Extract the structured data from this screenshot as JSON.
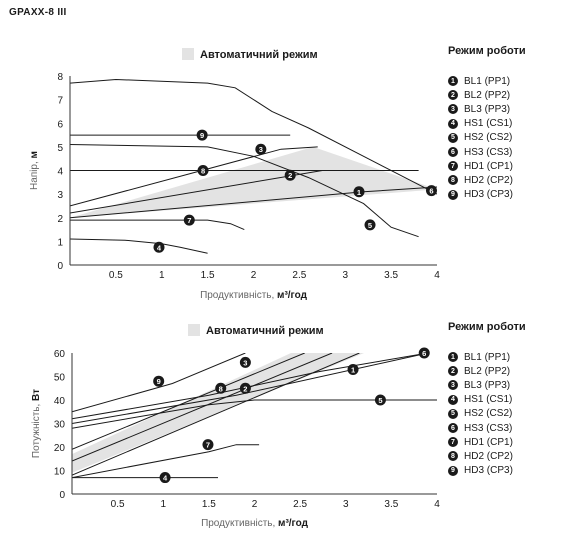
{
  "document_title": "GPAXX-8 III",
  "chart_data": [
    {
      "type": "line",
      "title": "Автоматичний режим",
      "xlabel": "Продуктивність, м³/год",
      "ylabel": "Напір, м",
      "xlim": [
        0,
        4
      ],
      "ylim": [
        0,
        8
      ],
      "x_ticks": [
        "0.5",
        "1",
        "1.5",
        "2",
        "2.5",
        "3",
        "3.5",
        "4"
      ],
      "y_ticks": [
        "0",
        "1",
        "2",
        "3",
        "4",
        "5",
        "6",
        "7",
        "8"
      ],
      "series": [
        {
          "marker": "1",
          "points": [
            [
              0,
              2.0
            ],
            [
              3.2,
              3.1
            ],
            [
              4.0,
              3.3
            ]
          ]
        },
        {
          "marker": "2",
          "points": [
            [
              0,
              2.2
            ],
            [
              2.75,
              4.0
            ],
            [
              3.8,
              4.0
            ]
          ]
        },
        {
          "marker": "3",
          "points": [
            [
              0,
              2.5
            ],
            [
              2.3,
              4.9
            ],
            [
              2.7,
              5.0
            ]
          ]
        },
        {
          "marker": "4",
          "points": [
            [
              0,
              1.1
            ],
            [
              0.6,
              1.05
            ],
            [
              1.0,
              0.9
            ],
            [
              1.2,
              0.75
            ],
            [
              1.5,
              0.5
            ]
          ]
        },
        {
          "marker": "5",
          "points": [
            [
              0,
              5.1
            ],
            [
              1.5,
              5.0
            ],
            [
              2.0,
              4.6
            ],
            [
              2.6,
              3.7
            ],
            [
              3.2,
              2.6
            ],
            [
              3.5,
              1.6
            ],
            [
              3.8,
              1.2
            ]
          ]
        },
        {
          "marker": "6",
          "points": [
            [
              0,
              7.7
            ],
            [
              0.5,
              7.85
            ],
            [
              1.5,
              7.7
            ],
            [
              1.8,
              7.5
            ],
            [
              2.2,
              6.5
            ],
            [
              2.6,
              5.8
            ],
            [
              3.2,
              4.6
            ],
            [
              3.6,
              3.8
            ],
            [
              4.0,
              3.0
            ]
          ]
        },
        {
          "marker": "7",
          "points": [
            [
              0,
              1.9
            ],
            [
              1.5,
              1.9
            ],
            [
              1.75,
              1.75
            ],
            [
              1.9,
              1.5
            ]
          ]
        },
        {
          "marker": "8",
          "points": [
            [
              0,
              4.0
            ],
            [
              3.0,
              4.0
            ]
          ]
        },
        {
          "marker": "9",
          "points": [
            [
              0,
              5.5
            ],
            [
              2.4,
              5.5
            ]
          ]
        }
      ],
      "markers": [
        {
          "label": "1",
          "x": 3.15,
          "y": 3.1
        },
        {
          "label": "2",
          "x": 2.4,
          "y": 3.8
        },
        {
          "label": "3",
          "x": 2.08,
          "y": 4.9
        },
        {
          "label": "4",
          "x": 0.97,
          "y": 0.75
        },
        {
          "label": "5",
          "x": 3.27,
          "y": 1.7
        },
        {
          "label": "6",
          "x": 3.94,
          "y": 3.15
        },
        {
          "label": "7",
          "x": 1.3,
          "y": 1.9
        },
        {
          "label": "8",
          "x": 1.45,
          "y": 4.0
        },
        {
          "label": "9",
          "x": 1.44,
          "y": 5.5
        }
      ],
      "shaded_region": [
        [
          0,
          2.0
        ],
        [
          2.65,
          5.0
        ],
        [
          4.0,
          3.2
        ],
        [
          0,
          2.0
        ]
      ],
      "legend_title": "Режим роботи",
      "legend": [
        "BL1 (PP1)",
        "BL2 (PP2)",
        "BL3 (PP3)",
        "HS1 (CS1)",
        "HS2 (CS2)",
        "HS3 (CS3)",
        "HD1 (CP1)",
        "HD2 (CP2)",
        "HD3 (CP3)"
      ]
    },
    {
      "type": "line",
      "title": "Автоматичний режим",
      "xlabel": "Продуктивність, м³/год",
      "ylabel": "Потужність, Вт",
      "xlim": [
        0,
        4
      ],
      "ylim": [
        0,
        60
      ],
      "x_ticks": [
        "0.5",
        "1",
        "1.5",
        "2",
        "2.5",
        "3",
        "3.5",
        "4"
      ],
      "y_ticks": [
        "0",
        "10",
        "20",
        "30",
        "40",
        "50",
        "60"
      ],
      "series": [
        {
          "marker": "1",
          "points": [
            [
              0,
              8
            ],
            [
              3.15,
              60
            ]
          ]
        },
        {
          "marker": "2",
          "points": [
            [
              0,
              14
            ],
            [
              2.85,
              60
            ]
          ]
        },
        {
          "marker": "3",
          "points": [
            [
              0,
              19
            ],
            [
              2.55,
              60
            ]
          ]
        },
        {
          "marker": "4",
          "points": [
            [
              0,
              7
            ],
            [
              1.6,
              7
            ]
          ]
        },
        {
          "marker": "5",
          "points": [
            [
              0,
              28
            ],
            [
              1.5,
              38
            ],
            [
              2.0,
              40
            ],
            [
              4.0,
              40
            ]
          ]
        },
        {
          "marker": "6",
          "points": [
            [
              0,
              30
            ],
            [
              1.8,
              42
            ],
            [
              3.9,
              60
            ]
          ]
        },
        {
          "marker": "7",
          "points": [
            [
              0,
              7
            ],
            [
              1.5,
              18
            ],
            [
              1.8,
              21
            ],
            [
              2.05,
              21
            ]
          ]
        },
        {
          "marker": "8",
          "points": [
            [
              0,
              32
            ],
            [
              1.5,
              42
            ],
            [
              2.7,
              52
            ],
            [
              3.9,
              60
            ]
          ]
        },
        {
          "marker": "9",
          "points": [
            [
              0,
              35
            ],
            [
              1.1,
              47
            ],
            [
              1.9,
              60
            ]
          ]
        }
      ],
      "markers": [
        {
          "label": "1",
          "x": 3.08,
          "y": 53
        },
        {
          "label": "2",
          "x": 1.9,
          "y": 45
        },
        {
          "label": "3",
          "x": 1.9,
          "y": 56
        },
        {
          "label": "4",
          "x": 1.02,
          "y": 7
        },
        {
          "label": "5",
          "x": 3.38,
          "y": 40
        },
        {
          "label": "6",
          "x": 3.86,
          "y": 60
        },
        {
          "label": "7",
          "x": 1.49,
          "y": 21
        },
        {
          "label": "8",
          "x": 1.63,
          "y": 45
        },
        {
          "label": "9",
          "x": 0.95,
          "y": 48
        }
      ],
      "shaded_region": [
        [
          0,
          9
        ],
        [
          3.2,
          60
        ],
        [
          2.4,
          60
        ],
        [
          0,
          17
        ],
        [
          0,
          9
        ]
      ],
      "legend_title": "Режим роботи",
      "legend": [
        "BL1 (PP1)",
        "BL2 (PP2)",
        "BL3 (PP3)",
        "HS1 (CS1)",
        "HS2 (CS2)",
        "HS3 (CS3)",
        "HD1 (CP1)",
        "HD2 (CP2)",
        "HD3 (CP3)"
      ]
    }
  ],
  "colors": {
    "line": "#1a1a1a",
    "shade": "#e3e3e3",
    "badge": "#1a1a1a",
    "badge_text": "#ffffff",
    "axis_label": "#666666"
  }
}
